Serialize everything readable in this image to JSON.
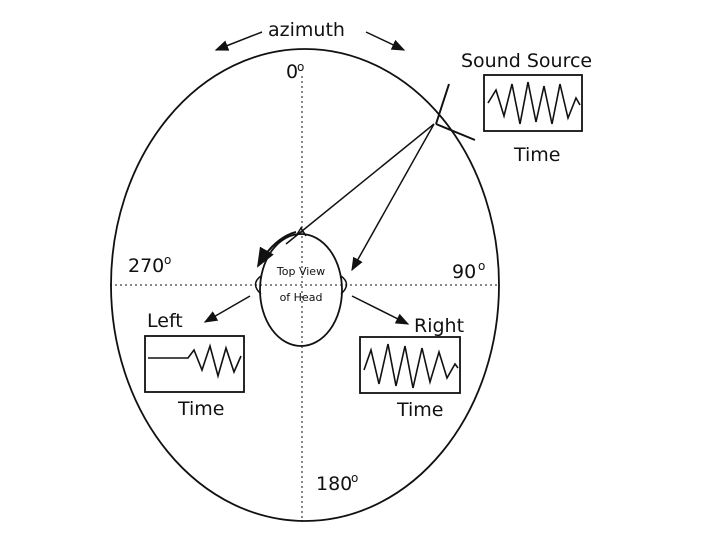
{
  "title": "azimuth",
  "angles": {
    "top": "0",
    "right": "90",
    "bottom": "180",
    "left": "270",
    "degree_symbol": "o"
  },
  "head": {
    "line1": "Top View",
    "line2": "of Head"
  },
  "source": {
    "label": "Sound Source",
    "axis": "Time"
  },
  "left_ear": {
    "label": "Left",
    "axis": "Time"
  },
  "right_ear": {
    "label": "Right",
    "axis": "Time"
  }
}
